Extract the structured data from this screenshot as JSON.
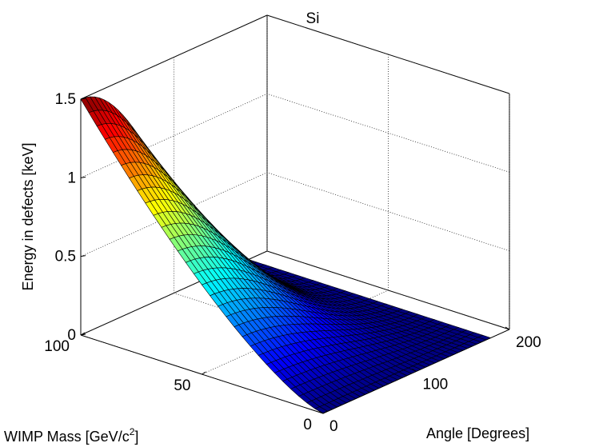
{
  "chart_data": {
    "type": "surface",
    "title": "Si",
    "xlabel": "Angle [Degrees]",
    "ylabel": "WIMP Mass [GeV/c2]",
    "ylabel_parts": {
      "base": "WIMP Mass [GeV/c",
      "sup": "2",
      "close": "]"
    },
    "zlabel": "Energy in defects [keV]",
    "xlim": [
      0,
      200
    ],
    "ylim": [
      0,
      100
    ],
    "zlim": [
      0,
      1.5
    ],
    "x_ticks": [
      0,
      100,
      200
    ],
    "y_ticks": [
      0,
      50,
      100
    ],
    "z_ticks": [
      0,
      0.5,
      1,
      1.5
    ],
    "x_tick_labels": [
      "0",
      "100",
      "200"
    ],
    "y_tick_labels": [
      "0",
      "50",
      "100"
    ],
    "z_tick_labels": [
      "0",
      "0.5",
      "1",
      "1.5"
    ],
    "grid": true,
    "colormap": "jet",
    "surface": {
      "x_range": [
        0,
        180
      ],
      "y_range": [
        0,
        100
      ],
      "peak_z": 1.5,
      "approximate_function": "z = 1.5 * (mass/100)^1.4 * cos(angle/2)^2"
    }
  }
}
